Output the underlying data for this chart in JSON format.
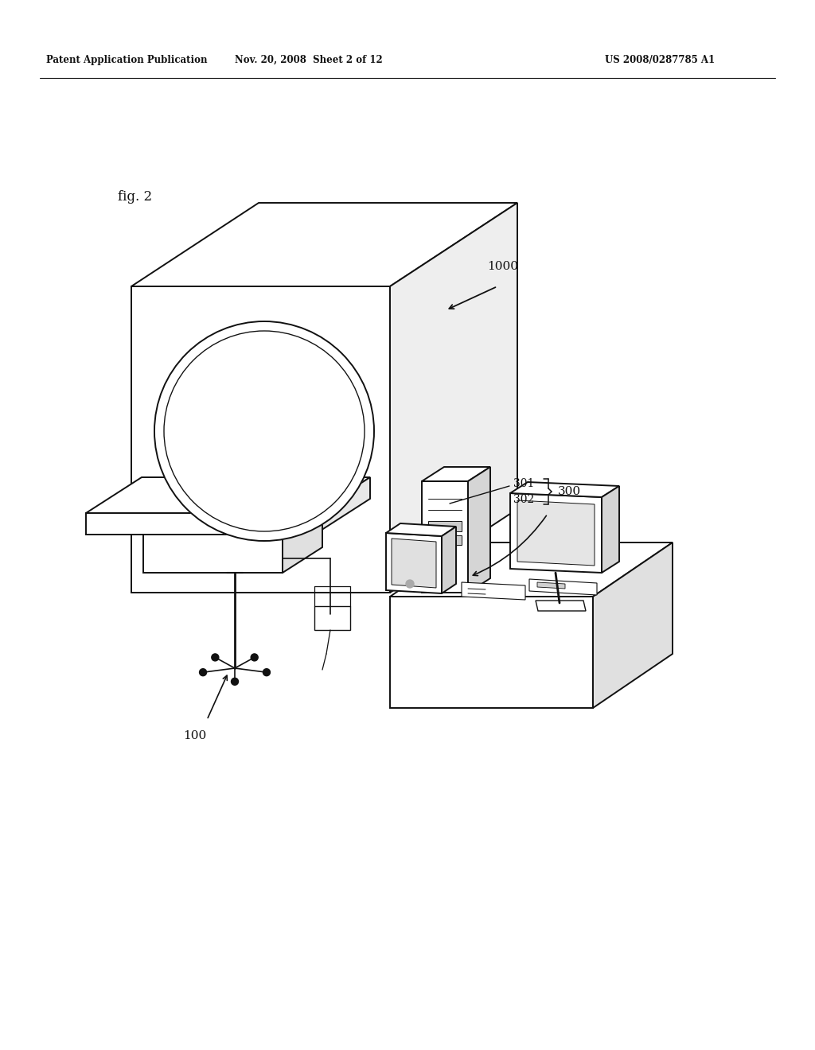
{
  "bg_color": "#ffffff",
  "line_color": "#111111",
  "header_left": "Patent Application Publication",
  "header_mid": "Nov. 20, 2008  Sheet 2 of 12",
  "header_right": "US 2008/0287785 A1",
  "fig_label": "fig. 2",
  "label_1000": "1000",
  "label_300": "300",
  "label_301": "301",
  "label_302": "302",
  "label_100": "100"
}
